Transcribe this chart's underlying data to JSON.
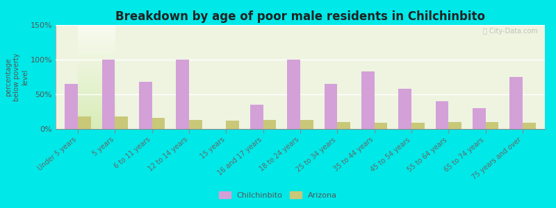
{
  "categories": [
    "Under 5 years",
    "5 years",
    "6 to 11 years",
    "12 to 14 years",
    "15 years",
    "16 and 17 years",
    "18 to 24 years",
    "25 to 34 years",
    "35 to 44 years",
    "45 to 54 years",
    "55 to 64 years",
    "65 to 74 years",
    "75 years and over"
  ],
  "chilchinbito": [
    65,
    100,
    68,
    100,
    0,
    35,
    100,
    65,
    83,
    58,
    40,
    30,
    75
  ],
  "arizona": [
    18,
    18,
    16,
    13,
    12,
    13,
    13,
    10,
    9,
    9,
    10,
    10,
    9
  ],
  "bar_color_chilchinbito": "#d4a0d8",
  "bar_color_arizona": "#c8c878",
  "title": "Breakdown by age of poor male residents in Chilchinbito",
  "ylabel": "percentage\nbelow poverty\nlevel",
  "ylim": [
    0,
    150
  ],
  "yticks": [
    0,
    50,
    100,
    150
  ],
  "ytick_labels": [
    "0%",
    "50%",
    "100%",
    "150%"
  ],
  "outer_bg": "#00e8e8",
  "plot_bg": "#eef4e0",
  "legend_labels": [
    "Chilchinbito",
    "Arizona"
  ],
  "title_fontsize": 12,
  "bar_width": 0.35
}
